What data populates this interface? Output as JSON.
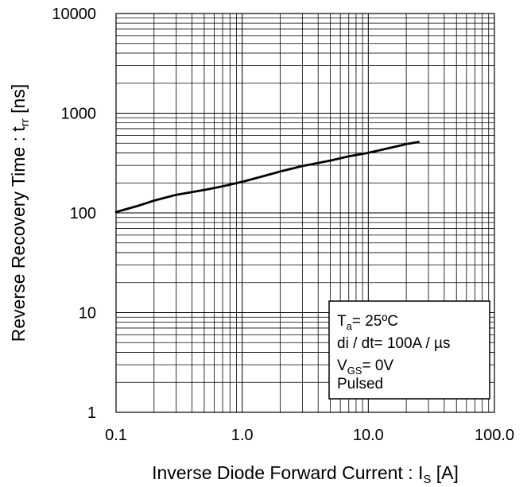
{
  "chart_data": {
    "type": "line",
    "xlabel": "Inverse Diode Forward Current : I",
    "xlabel_sub": "S",
    "xlabel_tail": " [A]",
    "ylabel": "Reverse Recovery Time : t",
    "ylabel_sub": "rr",
    "ylabel_tail": " [ns]",
    "xscale": "log",
    "yscale": "log",
    "xlim": [
      0.1,
      100
    ],
    "ylim": [
      1,
      10000
    ],
    "x_tick_labels": [
      "0.1",
      "1.0",
      "10.0",
      "100.0"
    ],
    "y_tick_labels": [
      "1",
      "10",
      "100",
      "1000",
      "10000"
    ],
    "grid": true,
    "series": [
      {
        "x": [
          0.1,
          0.15,
          0.2,
          0.3,
          0.5,
          0.7,
          1.0,
          1.5,
          2.0,
          3.0,
          5.0,
          7.0,
          10.0,
          15.0,
          20.0,
          25.0
        ],
        "y": [
          102,
          118,
          133,
          152,
          170,
          185,
          205,
          235,
          260,
          295,
          335,
          370,
          400,
          450,
          490,
          515
        ]
      }
    ],
    "legend": {
      "position": "bottom-right",
      "lines": [
        {
          "main": "T",
          "sub": "a",
          "tail": "= 25ºC"
        },
        {
          "main": "di / dt= 100A / µs",
          "sub": "",
          "tail": ""
        },
        {
          "main": "V",
          "sub": "GS",
          "tail": "= 0V"
        },
        {
          "main": "Pulsed",
          "sub": "",
          "tail": ""
        }
      ]
    },
    "colors": {
      "line": "#000000",
      "grid": "#000000",
      "frame": "#000000",
      "background": "#ffffff"
    }
  }
}
